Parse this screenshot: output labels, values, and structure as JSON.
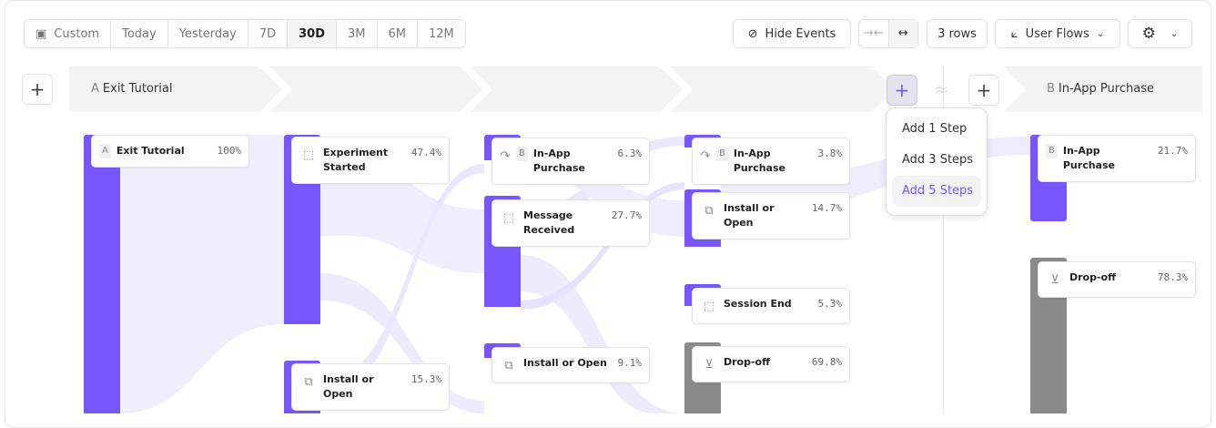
{
  "toolbar": {
    "date_ranges": [
      "Custom",
      "Today",
      "Yesterday",
      "7D",
      "30D",
      "3M",
      "6M",
      "12M"
    ],
    "active_range": "30D",
    "hide_events": "Hide Events",
    "rows": "3 rows",
    "view": "User Flows"
  },
  "header": {
    "start": {
      "letter": "A",
      "label": "Exit Tutorial"
    },
    "end": {
      "letter": "B",
      "label": "In-App Purchase"
    }
  },
  "menu": {
    "items": [
      "Add 1 Step",
      "Add 3 Steps",
      "Add 5 Steps"
    ],
    "highlighted": "Add 5 Steps"
  },
  "nodes": {
    "c1": [
      {
        "badge": "A",
        "name": "Exit Tutorial",
        "pct": "100%"
      }
    ],
    "c2": [
      {
        "icon": "cursor",
        "name": "Experiment Started",
        "pct": "47.4%"
      },
      {
        "icon": "copy",
        "name": "Install or Open",
        "pct": "15.3%"
      }
    ],
    "c3": [
      {
        "badge": "B",
        "name": "In-App Purchase",
        "pct": "6.3%"
      },
      {
        "icon": "cursor",
        "name": "Message Received",
        "pct": "27.7%"
      },
      {
        "icon": "copy",
        "name": "Install or Open",
        "pct": "9.1%"
      }
    ],
    "c4": [
      {
        "badge": "B",
        "name": "In-App Purchase",
        "pct": "3.8%"
      },
      {
        "icon": "copy",
        "name": "Install or Open",
        "pct": "14.7%"
      },
      {
        "icon": "cursor",
        "name": "Session End",
        "pct": "5.3%"
      },
      {
        "icon": "dropoff",
        "name": "Drop-off",
        "pct": "69.8%"
      }
    ],
    "c5": [
      {
        "badge": "B",
        "name": "In-App Purchase",
        "pct": "21.7%"
      },
      {
        "icon": "dropoff",
        "name": "Drop-off",
        "pct": "78.3%"
      }
    ]
  },
  "colors": {
    "accent": "#7856ff",
    "dropoff": "#8a8a8a",
    "flow": "#ece8ff"
  }
}
